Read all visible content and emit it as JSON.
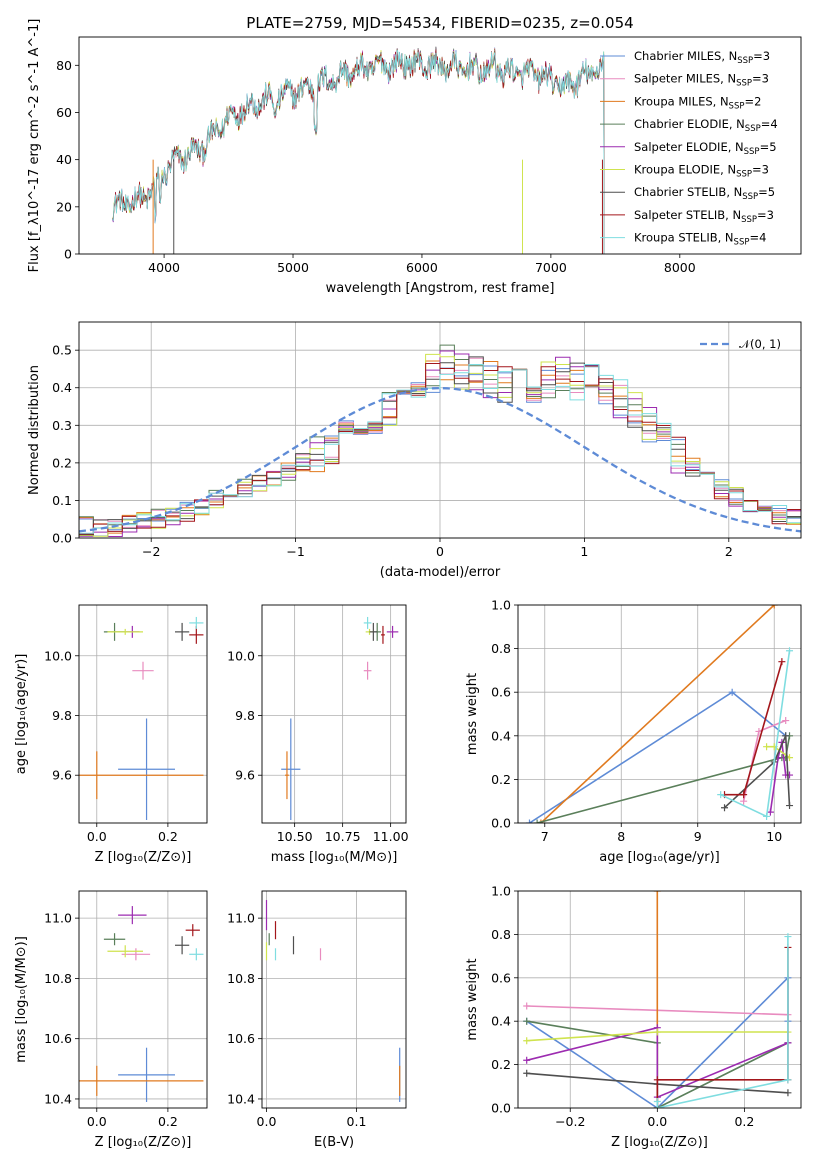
{
  "figure": {
    "title": "PLATE=2759, MJD=54534, FIBERID=0235, z=0.054"
  },
  "colors": {
    "Chabrier MILES": "#5e8bd6",
    "Salpeter MILES": "#e88bbf",
    "Kroupa MILES": "#e07a1f",
    "Chabrier ELODIE": "#5a7f5a",
    "Salpeter ELODIE": "#9c2bb0",
    "Kroupa ELODIE": "#cfe34e",
    "Chabrier STELIB": "#4f4f4f",
    "Salpeter STELIB": "#a3161b",
    "Kroupa STELIB": "#7fdde0"
  },
  "chart_data": [
    {
      "id": "spectrum",
      "type": "line",
      "title": "PLATE=2759, MJD=54534, FIBERID=0235, z=0.054",
      "xlabel": "wavelength [Angstrom, rest frame]",
      "ylabel": "Flux [f_λ10^-17 erg cm^-2 s^-1 A^-1]",
      "xlim": [
        3340,
        8940
      ],
      "ylim": [
        0,
        92
      ],
      "xticks": [
        4000,
        5000,
        6000,
        7000,
        8000
      ],
      "yticks": [
        0,
        20,
        40,
        60,
        80
      ],
      "legend_position": "top-right",
      "continuum_knots": {
        "x": [
          3600,
          3750,
          3900,
          4000,
          4100,
          4300,
          4500,
          4700,
          4900,
          5100,
          5300,
          5500,
          5700,
          5900,
          6100,
          6300,
          6500,
          6700,
          6900,
          7100,
          7300,
          7400
        ],
        "y": [
          20,
          22,
          26,
          35,
          40,
          45,
          58,
          64,
          67,
          70,
          74,
          78,
          80,
          81,
          80,
          79,
          78,
          77,
          76,
          71,
          76,
          80
        ]
      },
      "series": [
        {
          "name": "Chabrier MILES, N_SSP=3",
          "label_main": "Chabrier MILES, N",
          "label_sub": "SSP",
          "label_tail": "=3"
        },
        {
          "name": "Salpeter MILES, N_SSP=3",
          "label_main": "Salpeter MILES, N",
          "label_sub": "SSP",
          "label_tail": "=3"
        },
        {
          "name": "Kroupa MILES, N_SSP=2",
          "label_main": "Kroupa MILES, N",
          "label_sub": "SSP",
          "label_tail": "=2"
        },
        {
          "name": "Chabrier ELODIE, N_SSP=4",
          "label_main": "Chabrier ELODIE, N",
          "label_sub": "SSP",
          "label_tail": "=4"
        },
        {
          "name": "Salpeter ELODIE, N_SSP=5",
          "label_main": "Salpeter ELODIE, N",
          "label_sub": "SSP",
          "label_tail": "=5"
        },
        {
          "name": "Kroupa ELODIE, N_SSP=3",
          "label_main": "Kroupa ELODIE, N",
          "label_sub": "SSP",
          "label_tail": "=3"
        },
        {
          "name": "Chabrier STELIB, N_SSP=5",
          "label_main": "Chabrier STELIB, N",
          "label_sub": "SSP",
          "label_tail": "=5"
        },
        {
          "name": "Salpeter STELIB, N_SSP=3",
          "label_main": "Salpeter STELIB, N",
          "label_sub": "SSP",
          "label_tail": "=3"
        },
        {
          "name": "Kroupa STELIB, N_SSP=4",
          "label_main": "Kroupa STELIB, N",
          "label_sub": "SSP",
          "label_tail": "=4"
        }
      ]
    },
    {
      "id": "residuals",
      "type": "line",
      "xlabel": "(data-model)/error",
      "ylabel": "Normed distribution",
      "xlim": [
        -2.5,
        2.5
      ],
      "ylim": [
        0,
        0.575
      ],
      "xticks": [
        -2,
        -1,
        0,
        1,
        2
      ],
      "yticks": [
        0.0,
        0.1,
        0.2,
        0.3,
        0.4,
        0.5
      ],
      "grid": true,
      "gaussian_label": "𝒩(0, 1)",
      "legend_position": "top-right",
      "bin_width": 0.1,
      "bin_start": -2.5,
      "base_bins": [
        0.03,
        0.03,
        0.03,
        0.04,
        0.05,
        0.05,
        0.06,
        0.07,
        0.08,
        0.1,
        0.11,
        0.13,
        0.14,
        0.16,
        0.18,
        0.2,
        0.22,
        0.24,
        0.26,
        0.29,
        0.32,
        0.35,
        0.38,
        0.42,
        0.44,
        0.46,
        0.45,
        0.43,
        0.42,
        0.41,
        0.4,
        0.41,
        0.42,
        0.43,
        0.42,
        0.41,
        0.39,
        0.37,
        0.34,
        0.3,
        0.26,
        0.22,
        0.19,
        0.16,
        0.13,
        0.11,
        0.09,
        0.07,
        0.06,
        0.05
      ]
    },
    {
      "id": "age-vs-Z",
      "type": "scatter",
      "xlabel": "Z [log10(Z/Z⊙)]",
      "ylabel": "age  [log10(age/yr)]",
      "xlim": [
        -0.05,
        0.31
      ],
      "ylim": [
        9.44,
        10.17
      ],
      "xticks": [
        0.0,
        0.2
      ],
      "yticks": [
        9.6,
        9.8,
        10.0
      ],
      "grid": true,
      "points": [
        {
          "series": "Chabrier MILES",
          "x": 0.14,
          "y": 9.62,
          "xerr": 0.08,
          "yerr": 0.17
        },
        {
          "series": "Salpeter MILES",
          "x": 0.13,
          "y": 9.95,
          "xerr": 0.03,
          "yerr": 0.03
        },
        {
          "series": "Kroupa MILES",
          "x": 0.0,
          "y": 9.6,
          "xerr": 0.3,
          "yerr": 0.08
        },
        {
          "series": "Chabrier ELODIE",
          "x": 0.05,
          "y": 10.08,
          "xerr": 0.03,
          "yerr": 0.03
        },
        {
          "series": "Salpeter ELODIE",
          "x": 0.1,
          "y": 10.08,
          "xerr": 0.02,
          "yerr": 0.02
        },
        {
          "series": "Kroupa ELODIE",
          "x": 0.08,
          "y": 10.08,
          "xerr": 0.05,
          "yerr": 0.01
        },
        {
          "series": "Chabrier STELIB",
          "x": 0.24,
          "y": 10.08,
          "xerr": 0.02,
          "yerr": 0.03
        },
        {
          "series": "Salpeter STELIB",
          "x": 0.28,
          "y": 10.07,
          "xerr": 0.02,
          "yerr": 0.03
        },
        {
          "series": "Kroupa STELIB",
          "x": 0.28,
          "y": 10.11,
          "xerr": 0.02,
          "yerr": 0.02
        }
      ]
    },
    {
      "id": "age-vs-mass",
      "type": "scatter",
      "xlabel": "mass [log10(M/M⊙)]",
      "ylabel": "",
      "xlim": [
        10.33,
        11.08
      ],
      "ylim": [
        9.44,
        10.17
      ],
      "xticks": [
        10.5,
        10.75,
        11.0
      ],
      "yticks": [
        9.6,
        9.8,
        10.0
      ],
      "grid": true,
      "points": [
        {
          "series": "Chabrier MILES",
          "x": 10.48,
          "y": 9.62,
          "xerr": 0.05,
          "yerr": 0.17
        },
        {
          "series": "Salpeter MILES",
          "x": 10.88,
          "y": 9.95,
          "xerr": 0.02,
          "yerr": 0.03
        },
        {
          "series": "Kroupa MILES",
          "x": 10.46,
          "y": 9.6,
          "xerr": 0.01,
          "yerr": 0.08
        },
        {
          "series": "Chabrier ELODIE",
          "x": 10.93,
          "y": 10.08,
          "xerr": 0.02,
          "yerr": 0.03
        },
        {
          "series": "Salpeter ELODIE",
          "x": 11.01,
          "y": 10.08,
          "xerr": 0.03,
          "yerr": 0.02
        },
        {
          "series": "Kroupa ELODIE",
          "x": 10.89,
          "y": 10.08,
          "xerr": 0.02,
          "yerr": 0.01
        },
        {
          "series": "Chabrier STELIB",
          "x": 10.91,
          "y": 10.08,
          "xerr": 0.02,
          "yerr": 0.03
        },
        {
          "series": "Salpeter STELIB",
          "x": 10.96,
          "y": 10.07,
          "xerr": 0.01,
          "yerr": 0.03
        },
        {
          "series": "Kroupa STELIB",
          "x": 10.88,
          "y": 10.11,
          "xerr": 0.02,
          "yerr": 0.02
        }
      ]
    },
    {
      "id": "weight-vs-age",
      "type": "line",
      "xlabel": "age  [log10(age/yr)]",
      "ylabel": "mass weight",
      "xlim": [
        6.65,
        10.35
      ],
      "ylim": [
        0,
        1
      ],
      "xticks": [
        7,
        8,
        9,
        10
      ],
      "yticks": [
        0.0,
        0.2,
        0.4,
        0.6,
        0.8,
        1.0
      ],
      "grid": true,
      "series": [
        {
          "name": "Chabrier MILES",
          "x": [
            6.8,
            9.45,
            10.15
          ],
          "y": [
            0.0,
            0.6,
            0.4
          ]
        },
        {
          "name": "Salpeter MILES",
          "x": [
            9.6,
            9.8,
            10.15
          ],
          "y": [
            0.1,
            0.42,
            0.47
          ]
        },
        {
          "name": "Kroupa MILES",
          "x": [
            6.95,
            10.0
          ],
          "y": [
            0.0,
            1.0
          ]
        },
        {
          "name": "Chabrier ELODIE",
          "x": [
            6.9,
            10.1,
            10.15,
            10.2
          ],
          "y": [
            0.0,
            0.3,
            0.3,
            0.4
          ]
        },
        {
          "name": "Salpeter ELODIE",
          "x": [
            9.95,
            10.05,
            10.1,
            10.15,
            10.2
          ],
          "y": [
            0.05,
            0.3,
            0.37,
            0.22,
            0.22
          ]
        },
        {
          "name": "Kroupa ELODIE",
          "x": [
            9.9,
            10.0,
            10.2
          ],
          "y": [
            0.35,
            0.35,
            0.3
          ]
        },
        {
          "name": "Chabrier STELIB",
          "x": [
            9.35,
            10.0,
            10.15,
            10.2
          ],
          "y": [
            0.07,
            0.28,
            0.4,
            0.08
          ]
        },
        {
          "name": "Salpeter STELIB",
          "x": [
            9.35,
            9.6,
            10.1
          ],
          "y": [
            0.13,
            0.13,
            0.74
          ]
        },
        {
          "name": "Kroupa STELIB",
          "x": [
            9.3,
            9.9,
            10.2
          ],
          "y": [
            0.13,
            0.03,
            0.79
          ]
        }
      ]
    },
    {
      "id": "mass-vs-Z",
      "type": "scatter",
      "xlabel": "Z [log10(Z/Z⊙)]",
      "ylabel": "mass [log10(M/M⊙)]",
      "xlim": [
        -0.05,
        0.31
      ],
      "ylim": [
        10.37,
        11.09
      ],
      "xticks": [
        0.0,
        0.2
      ],
      "yticks": [
        10.4,
        10.6,
        10.8,
        11.0
      ],
      "grid": true,
      "points": [
        {
          "series": "Chabrier MILES",
          "x": 0.14,
          "y": 10.48,
          "xerr": 0.08,
          "yerr": 0.09
        },
        {
          "series": "Salpeter MILES",
          "x": 0.11,
          "y": 10.88,
          "xerr": 0.04,
          "yerr": 0.02
        },
        {
          "series": "Kroupa MILES",
          "x": 0.0,
          "y": 10.46,
          "xerr": 0.3,
          "yerr": 0.05
        },
        {
          "series": "Chabrier ELODIE",
          "x": 0.05,
          "y": 10.93,
          "xerr": 0.03,
          "yerr": 0.02
        },
        {
          "series": "Salpeter ELODIE",
          "x": 0.1,
          "y": 11.01,
          "xerr": 0.04,
          "yerr": 0.03
        },
        {
          "series": "Kroupa ELODIE",
          "x": 0.08,
          "y": 10.89,
          "xerr": 0.05,
          "yerr": 0.02
        },
        {
          "series": "Chabrier STELIB",
          "x": 0.24,
          "y": 10.91,
          "xerr": 0.02,
          "yerr": 0.03
        },
        {
          "series": "Salpeter STELIB",
          "x": 0.27,
          "y": 10.96,
          "xerr": 0.02,
          "yerr": 0.02
        },
        {
          "series": "Kroupa STELIB",
          "x": 0.28,
          "y": 10.88,
          "xerr": 0.02,
          "yerr": 0.02
        }
      ]
    },
    {
      "id": "mass-vs-EBV",
      "type": "scatter",
      "xlabel": "E(B-V)",
      "ylabel": "",
      "xlim": [
        -0.005,
        0.155
      ],
      "ylim": [
        10.37,
        11.09
      ],
      "xticks": [
        0.0,
        0.1
      ],
      "yticks": [
        10.4,
        10.6,
        10.8,
        11.0
      ],
      "grid": true,
      "points": [
        {
          "series": "Chabrier MILES",
          "x": 0.148,
          "y": 10.48,
          "xerr": 0.0,
          "yerr": 0.09
        },
        {
          "series": "Salpeter MILES",
          "x": 0.06,
          "y": 10.88,
          "xerr": 0.0,
          "yerr": 0.02
        },
        {
          "series": "Kroupa MILES",
          "x": 0.148,
          "y": 10.46,
          "xerr": 0.0,
          "yerr": 0.05
        },
        {
          "series": "Chabrier ELODIE",
          "x": 0.003,
          "y": 10.93,
          "xerr": 0.0,
          "yerr": 0.02
        },
        {
          "series": "Salpeter ELODIE",
          "x": 0.0,
          "y": 11.01,
          "xerr": 0.0,
          "yerr": 0.05
        },
        {
          "series": "Kroupa ELODIE",
          "x": 0.0,
          "y": 10.89,
          "xerr": 0.0,
          "yerr": 0.03
        },
        {
          "series": "Chabrier STELIB",
          "x": 0.03,
          "y": 10.91,
          "xerr": 0.0,
          "yerr": 0.03
        },
        {
          "series": "Salpeter STELIB",
          "x": 0.01,
          "y": 10.96,
          "xerr": 0.0,
          "yerr": 0.03
        },
        {
          "series": "Kroupa STELIB",
          "x": 0.01,
          "y": 10.88,
          "xerr": 0.0,
          "yerr": 0.02
        }
      ]
    },
    {
      "id": "weight-vs-Z",
      "type": "line",
      "xlabel": "Z [log10(Z/Z⊙)]",
      "ylabel": "mass weight",
      "xlim": [
        -0.32,
        0.33
      ],
      "ylim": [
        0,
        1
      ],
      "xticks": [
        -0.2,
        0.0,
        0.2
      ],
      "yticks": [
        0.0,
        0.2,
        0.4,
        0.6,
        0.8,
        1.0
      ],
      "grid": true,
      "series": [
        {
          "name": "Chabrier MILES",
          "x": [
            -0.3,
            0.0,
            0.3,
            0.3
          ],
          "y": [
            0.4,
            0.0,
            0.6,
            0.4
          ]
        },
        {
          "name": "Salpeter MILES",
          "x": [
            -0.3,
            0.3
          ],
          "y": [
            0.47,
            0.43
          ]
        },
        {
          "name": "Kroupa MILES",
          "x": [
            0.0,
            0.0
          ],
          "y": [
            0.0,
            1.0
          ]
        },
        {
          "name": "Chabrier ELODIE",
          "x": [
            -0.3,
            0.0,
            0.0,
            0.3
          ],
          "y": [
            0.4,
            0.3,
            0.0,
            0.3
          ]
        },
        {
          "name": "Salpeter ELODIE",
          "x": [
            -0.3,
            0.0,
            0.0,
            0.3
          ],
          "y": [
            0.22,
            0.37,
            0.05,
            0.3
          ]
        },
        {
          "name": "Kroupa ELODIE",
          "x": [
            -0.3,
            0.0,
            0.3
          ],
          "y": [
            0.31,
            0.35,
            0.35
          ]
        },
        {
          "name": "Chabrier STELIB",
          "x": [
            -0.3,
            0.0,
            0.3
          ],
          "y": [
            0.16,
            0.11,
            0.07
          ]
        },
        {
          "name": "Salpeter STELIB",
          "x": [
            0.0,
            0.0,
            0.3,
            0.3
          ],
          "y": [
            0.0,
            0.13,
            0.13,
            0.74
          ]
        },
        {
          "name": "Kroupa STELIB",
          "x": [
            0.0,
            0.0,
            0.3,
            0.3
          ],
          "y": [
            0.03,
            0.0,
            0.13,
            0.79
          ]
        }
      ]
    }
  ]
}
